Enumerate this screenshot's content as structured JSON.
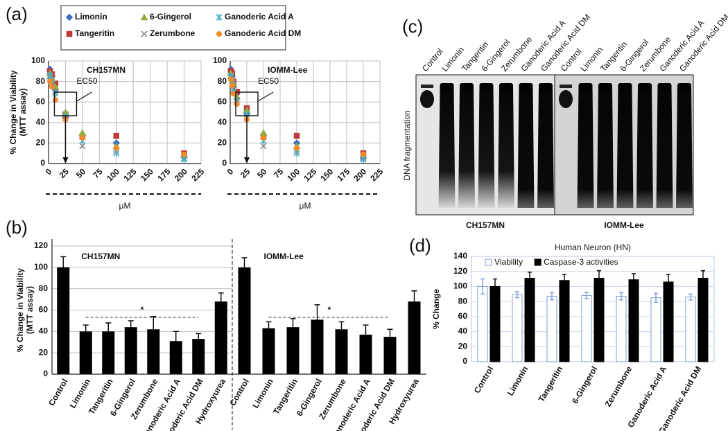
{
  "panel_labels": [
    "(a)",
    "(b)",
    "(c)",
    "(d)"
  ],
  "gel": {
    "lanes": [
      "Control",
      "Limonin",
      "Tangeritin",
      "6-Gingerol",
      "Zerumbone",
      "Ganoderic Acid A",
      "Ganoderic Acid DM"
    ],
    "y_label": "DNA fragmentation",
    "cell_lines": [
      "CH157MN",
      "IOMM-Lee"
    ]
  },
  "chart_data": [
    {
      "type": "scatter",
      "title": "CH157MN",
      "x_label": "μM",
      "y_label": [
        "% Change in Viability",
        "(MTT assay)"
      ],
      "annotation": "EC50",
      "x": [
        2,
        5,
        10,
        25,
        50,
        100,
        200
      ],
      "xlim": [
        0,
        225
      ],
      "xticks": [
        0,
        25,
        50,
        75,
        100,
        125,
        150,
        175,
        200,
        225
      ],
      "ylim": [
        0,
        100
      ],
      "yticks": [
        0,
        20,
        40,
        60,
        80,
        100
      ],
      "grid": true,
      "series": [
        {
          "name": "Limonin",
          "color": "#3a6fc4",
          "marker": "diamond",
          "values": [
            92,
            85,
            72,
            45,
            28,
            20,
            6
          ]
        },
        {
          "name": "Tangeritin",
          "color": "#c0393b",
          "marker": "square",
          "values": [
            90,
            87,
            78,
            48,
            26,
            27,
            10
          ]
        },
        {
          "name": "6-Gingerol",
          "color": "#8fae3f",
          "marker": "triangle",
          "values": [
            88,
            82,
            75,
            50,
            30,
            17,
            8
          ]
        },
        {
          "name": "Zerumbone",
          "color": "#8a8a8a",
          "marker": "x",
          "values": [
            85,
            80,
            70,
            44,
            17,
            12,
            5
          ]
        },
        {
          "name": "Ganoderic Acid A",
          "color": "#4bacc6",
          "marker": "asterisk",
          "values": [
            86,
            78,
            68,
            46,
            22,
            10,
            4
          ]
        },
        {
          "name": "Ganoderic Acid DM",
          "color": "#f28c28",
          "marker": "circle",
          "values": [
            80,
            75,
            62,
            43,
            25,
            15,
            9
          ]
        }
      ]
    },
    {
      "type": "scatter",
      "title": "IOMM-Lee",
      "x_label": "μM",
      "annotation": "EC50",
      "x": [
        1,
        3,
        5,
        10,
        25,
        50,
        100,
        200
      ],
      "xlim": [
        0,
        225
      ],
      "xticks": [
        0,
        25,
        50,
        75,
        100,
        125,
        150,
        175,
        200,
        225
      ],
      "ylim": [
        0,
        100
      ],
      "yticks": [
        0,
        20,
        40,
        60,
        80,
        100
      ],
      "grid": true,
      "series": [
        {
          "color": "#3a6fc4",
          "marker": "diamond",
          "values": [
            92,
            85,
            75,
            68,
            49,
            28,
            20,
            5
          ]
        },
        {
          "color": "#c0393b",
          "marker": "square",
          "values": [
            90,
            88,
            80,
            70,
            54,
            26,
            27,
            10
          ]
        },
        {
          "color": "#8fae3f",
          "marker": "triangle",
          "values": [
            88,
            82,
            78,
            65,
            52,
            30,
            17,
            8
          ]
        },
        {
          "color": "#8a8a8a",
          "marker": "x",
          "values": [
            86,
            80,
            72,
            62,
            45,
            17,
            12,
            5
          ]
        },
        {
          "color": "#4bacc6",
          "marker": "asterisk",
          "values": [
            85,
            78,
            70,
            60,
            48,
            22,
            10,
            4
          ]
        },
        {
          "color": "#f28c28",
          "marker": "circle",
          "values": [
            82,
            76,
            68,
            58,
            43,
            25,
            15,
            9
          ]
        }
      ]
    },
    {
      "type": "bar",
      "title": "CH157MN",
      "y_label": [
        "% Change in Viability",
        "(MTT assay)"
      ],
      "annotation": "*",
      "categories": [
        "Control",
        "Limonin",
        "Tangeritin",
        "6-Gingerol",
        "Zerumbone",
        "Ganoderic Acid A",
        "Ganoderic Acid DM",
        "Hydroxyurea"
      ],
      "values": [
        100,
        40,
        40,
        44,
        42,
        31,
        33,
        68
      ],
      "errors": [
        10,
        6,
        8,
        6,
        12,
        9,
        5,
        8
      ],
      "color": "#000000",
      "ylim": [
        0,
        120
      ],
      "yticks": [
        0,
        20,
        40,
        60,
        80,
        100,
        120
      ],
      "grid": true
    },
    {
      "type": "bar",
      "title": "IOMM-Lee",
      "annotation": "*",
      "categories": [
        "Control",
        "Limonin",
        "Tangeritin",
        "6-Gingerol",
        "Zerumbone",
        "Ganoderic Acid A",
        "Ganoderic Acid DM",
        "Hydroxyurea"
      ],
      "values": [
        100,
        43,
        44,
        51,
        42,
        37,
        35,
        68
      ],
      "errors": [
        9,
        6,
        8,
        14,
        7,
        9,
        7,
        10
      ],
      "color": "#000000",
      "ylim": [
        0,
        120
      ],
      "grid": true
    },
    {
      "type": "grouped_bar",
      "title": "Human Neuron (HN)",
      "y_label": "% Change",
      "categories": [
        "Control",
        "Limonin",
        "Tangeritin",
        "6-Gingerol",
        "Zerumbone",
        "Ganoderic Acid A",
        "Ganoderic Acid DM"
      ],
      "ylim": [
        0,
        140
      ],
      "yticks": [
        0,
        20,
        40,
        60,
        80,
        100,
        120,
        140
      ],
      "grid": true,
      "legend": "top",
      "series": [
        {
          "name": "Viability",
          "color": "#ffffff",
          "edge": "#7d9ccf",
          "values": [
            100,
            89,
            87,
            88,
            87,
            85,
            86
          ],
          "errors": [
            10,
            4,
            5,
            4,
            5,
            6,
            4
          ]
        },
        {
          "name": "Caspase-3 activities",
          "color": "#000000",
          "edge": "#000000",
          "values": [
            100,
            111,
            108,
            111,
            109,
            106,
            111
          ],
          "errors": [
            10,
            8,
            8,
            10,
            8,
            10,
            10
          ]
        }
      ]
    }
  ]
}
